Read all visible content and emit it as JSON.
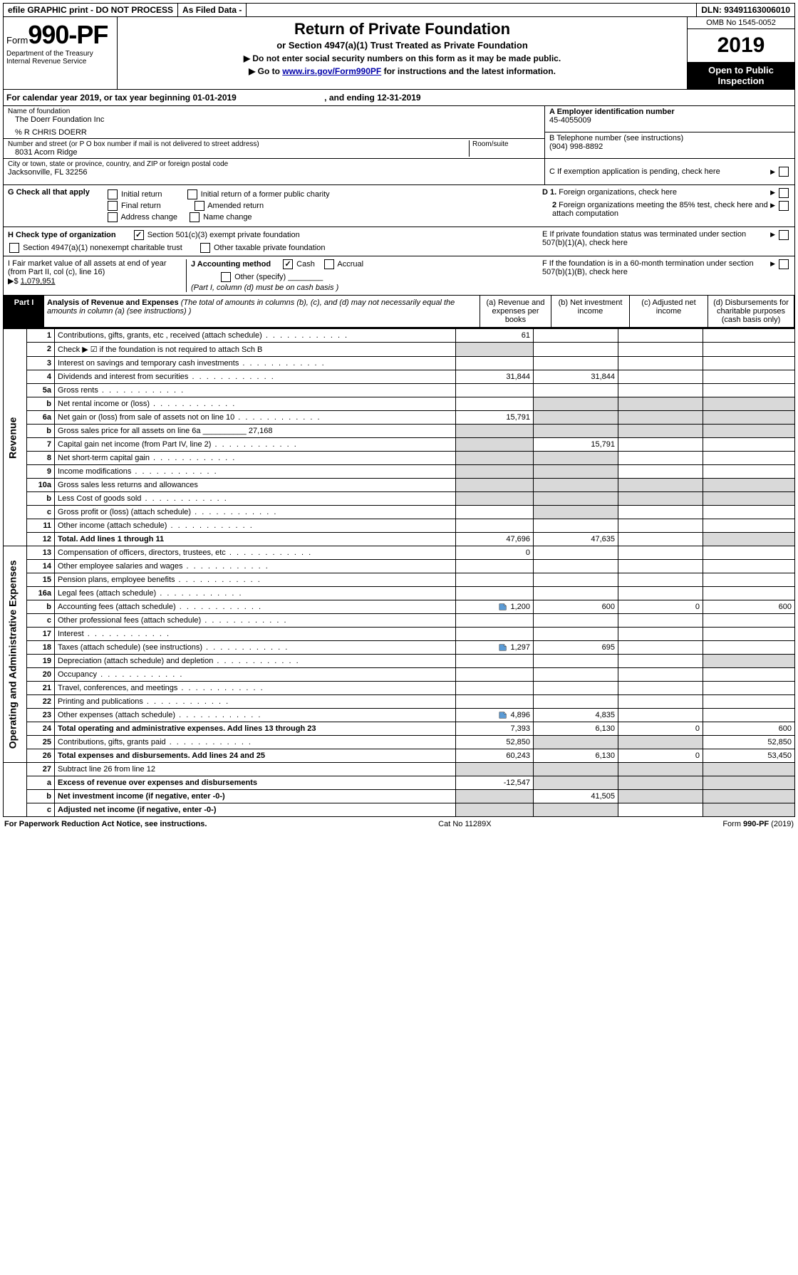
{
  "topbar": {
    "efile": "efile GRAPHIC print - DO NOT PROCESS",
    "asfiled": "As Filed Data -",
    "dln": "DLN: 93491163006010"
  },
  "header": {
    "form_prefix": "Form",
    "form_num": "990-PF",
    "dept1": "Department of the Treasury",
    "dept2": "Internal Revenue Service",
    "title": "Return of Private Foundation",
    "subtitle": "or Section 4947(a)(1) Trust Treated as Private Foundation",
    "note1": "▶ Do not enter social security numbers on this form as it may be made public.",
    "note2_pre": "▶ Go to ",
    "note2_link": "www.irs.gov/Form990PF",
    "note2_post": " for instructions and the latest information.",
    "omb": "OMB No 1545-0052",
    "year": "2019",
    "open": "Open to Public Inspection"
  },
  "calyear": {
    "text_pre": "For calendar year 2019, or tax year beginning ",
    "begin": "01-01-2019",
    "mid": " , and ending ",
    "end": "12-31-2019"
  },
  "info": {
    "name_label": "Name of foundation",
    "name": "The Doerr Foundation Inc",
    "care_of": "% R CHRIS DOERR",
    "addr_label": "Number and street (or P O  box number if mail is not delivered to street address)",
    "addr": "8031 Acorn Ridge",
    "room_label": "Room/suite",
    "city_label": "City or town, state or province, country, and ZIP or foreign postal code",
    "city": "Jacksonville, FL  32256",
    "A_label": "A Employer identification number",
    "A_val": "45-4055009",
    "B_label": "B Telephone number (see instructions)",
    "B_val": "(904) 998-8892",
    "C_label": "C If exemption application is pending, check here",
    "D1": "D 1. Foreign organizations, check here",
    "D2": "2 Foreign organizations meeting the 85% test, check here and attach computation",
    "E": "E  If private foundation status was terminated under section 507(b)(1)(A), check here",
    "F": "F  If the foundation is in a 60-month termination under section 507(b)(1)(B), check here"
  },
  "G": {
    "label": "G Check all that apply",
    "opts": [
      "Initial return",
      "Initial return of a former public charity",
      "Final return",
      "Amended return",
      "Address change",
      "Name change"
    ]
  },
  "H": {
    "label": "H Check type of organization",
    "opt1": "Section 501(c)(3) exempt private foundation",
    "opt2": "Section 4947(a)(1) nonexempt charitable trust",
    "opt3": "Other taxable private foundation"
  },
  "I": {
    "label": "I Fair market value of all assets at end of year (from Part II, col  (c), line 16)",
    "val_prefix": "▶$ ",
    "val": "1,079,951"
  },
  "J": {
    "label": "J Accounting method",
    "cash": "Cash",
    "accrual": "Accrual",
    "other": "Other (specify)",
    "note": "(Part I, column (d) must be on cash basis )"
  },
  "part1": {
    "badge": "Part I",
    "title": "Analysis of Revenue and Expenses",
    "title_note": " (The total of amounts in columns (b), (c), and (d) may not necessarily equal the amounts in column (a) (see instructions) )",
    "col_a": "(a) Revenue and expenses per books",
    "col_b": "(b) Net investment income",
    "col_c": "(c) Adjusted net income",
    "col_d": "(d) Disbursements for charitable purposes (cash basis only)"
  },
  "sections": {
    "revenue": "Revenue",
    "expenses": "Operating and Administrative Expenses"
  },
  "rows": [
    {
      "n": "1",
      "label": "Contributions, gifts, grants, etc , received (attach schedule)",
      "a": "61",
      "b": "",
      "c": "",
      "d": ""
    },
    {
      "n": "2",
      "label": "Check ▶ ☑ if the foundation is not required to attach Sch  B",
      "a": "",
      "b": "",
      "c": "",
      "d": "",
      "nodots": true,
      "grayA": true
    },
    {
      "n": "3",
      "label": "Interest on savings and temporary cash investments",
      "a": "",
      "b": "",
      "c": "",
      "d": ""
    },
    {
      "n": "4",
      "label": "Dividends and interest from securities",
      "a": "31,844",
      "b": "31,844",
      "c": "",
      "d": ""
    },
    {
      "n": "5a",
      "label": "Gross rents",
      "a": "",
      "b": "",
      "c": "",
      "d": ""
    },
    {
      "n": "b",
      "label": "Net rental income or (loss)",
      "a": "",
      "b": "",
      "c": "",
      "d": "",
      "grayBCD": true
    },
    {
      "n": "6a",
      "label": "Net gain or (loss) from sale of assets not on line 10",
      "a": "15,791",
      "b": "",
      "c": "",
      "d": "",
      "grayBCD": true
    },
    {
      "n": "b",
      "label": "Gross sales price for all assets on line 6a __________ 27,168",
      "a": "",
      "b": "",
      "c": "",
      "d": "",
      "grayA": true,
      "grayBCD": true,
      "nodots": true
    },
    {
      "n": "7",
      "label": "Capital gain net income (from Part IV, line 2)",
      "a": "",
      "b": "15,791",
      "c": "",
      "d": "",
      "grayA": true
    },
    {
      "n": "8",
      "label": "Net short-term capital gain",
      "a": "",
      "b": "",
      "c": "",
      "d": "",
      "grayA": true,
      "grayB": true
    },
    {
      "n": "9",
      "label": "Income modifications",
      "a": "",
      "b": "",
      "c": "",
      "d": "",
      "grayA": true,
      "grayB": true
    },
    {
      "n": "10a",
      "label": "Gross sales less returns and allowances",
      "a": "",
      "b": "",
      "c": "",
      "d": "",
      "grayA": true,
      "grayBCD": true,
      "nodots": true
    },
    {
      "n": "b",
      "label": "Less  Cost of goods sold",
      "a": "",
      "b": "",
      "c": "",
      "d": "",
      "grayA": true,
      "grayBCD": true
    },
    {
      "n": "c",
      "label": "Gross profit or (loss) (attach schedule)",
      "a": "",
      "b": "",
      "c": "",
      "d": "",
      "grayB": true
    },
    {
      "n": "11",
      "label": "Other income (attach schedule)",
      "a": "",
      "b": "",
      "c": "",
      "d": ""
    },
    {
      "n": "12",
      "label": "Total. Add lines 1 through 11",
      "a": "47,696",
      "b": "47,635",
      "c": "",
      "d": "",
      "bold": true,
      "grayD": true
    }
  ],
  "exp_rows": [
    {
      "n": "13",
      "label": "Compensation of officers, directors, trustees, etc",
      "a": "0",
      "b": "",
      "c": "",
      "d": ""
    },
    {
      "n": "14",
      "label": "Other employee salaries and wages",
      "a": "",
      "b": "",
      "c": "",
      "d": ""
    },
    {
      "n": "15",
      "label": "Pension plans, employee benefits",
      "a": "",
      "b": "",
      "c": "",
      "d": ""
    },
    {
      "n": "16a",
      "label": "Legal fees (attach schedule)",
      "a": "",
      "b": "",
      "c": "",
      "d": ""
    },
    {
      "n": "b",
      "label": "Accounting fees (attach schedule)",
      "a": "1,200",
      "b": "600",
      "c": "0",
      "d": "600",
      "icon": true
    },
    {
      "n": "c",
      "label": "Other professional fees (attach schedule)",
      "a": "",
      "b": "",
      "c": "",
      "d": ""
    },
    {
      "n": "17",
      "label": "Interest",
      "a": "",
      "b": "",
      "c": "",
      "d": ""
    },
    {
      "n": "18",
      "label": "Taxes (attach schedule) (see instructions)",
      "a": "1,297",
      "b": "695",
      "c": "",
      "d": "",
      "icon": true
    },
    {
      "n": "19",
      "label": "Depreciation (attach schedule) and depletion",
      "a": "",
      "b": "",
      "c": "",
      "d": "",
      "grayD": true
    },
    {
      "n": "20",
      "label": "Occupancy",
      "a": "",
      "b": "",
      "c": "",
      "d": ""
    },
    {
      "n": "21",
      "label": "Travel, conferences, and meetings",
      "a": "",
      "b": "",
      "c": "",
      "d": ""
    },
    {
      "n": "22",
      "label": "Printing and publications",
      "a": "",
      "b": "",
      "c": "",
      "d": ""
    },
    {
      "n": "23",
      "label": "Other expenses (attach schedule)",
      "a": "4,896",
      "b": "4,835",
      "c": "",
      "d": "",
      "icon": true
    },
    {
      "n": "24",
      "label": "Total operating and administrative expenses. Add lines 13 through 23",
      "a": "7,393",
      "b": "6,130",
      "c": "0",
      "d": "600",
      "bold": true
    },
    {
      "n": "25",
      "label": "Contributions, gifts, grants paid",
      "a": "52,850",
      "b": "",
      "c": "",
      "d": "52,850",
      "grayB": true,
      "grayC": true
    },
    {
      "n": "26",
      "label": "Total expenses and disbursements. Add lines 24 and 25",
      "a": "60,243",
      "b": "6,130",
      "c": "0",
      "d": "53,450",
      "bold": true
    }
  ],
  "bottom_rows": [
    {
      "n": "27",
      "label": "Subtract line 26 from line 12",
      "a": "",
      "b": "",
      "c": "",
      "d": "",
      "grayAll": true
    },
    {
      "n": "a",
      "label": "Excess of revenue over expenses and disbursements",
      "a": "-12,547",
      "b": "",
      "c": "",
      "d": "",
      "bold": true,
      "grayBCD": true
    },
    {
      "n": "b",
      "label": "Net investment income (if negative, enter -0-)",
      "a": "",
      "b": "41,505",
      "c": "",
      "d": "",
      "bold": true,
      "grayA": true,
      "grayCD": true
    },
    {
      "n": "c",
      "label": "Adjusted net income (if negative, enter -0-)",
      "a": "",
      "b": "",
      "c": "",
      "d": "",
      "bold": true,
      "grayA": true,
      "grayB": true,
      "grayD": true
    }
  ],
  "footer": {
    "left": "For Paperwork Reduction Act Notice, see instructions.",
    "center": "Cat  No  11289X",
    "right": "Form 990-PF (2019)"
  },
  "colors": {
    "black": "#000000",
    "gray_cell": "#d9d9d9",
    "link": "#0000aa"
  }
}
